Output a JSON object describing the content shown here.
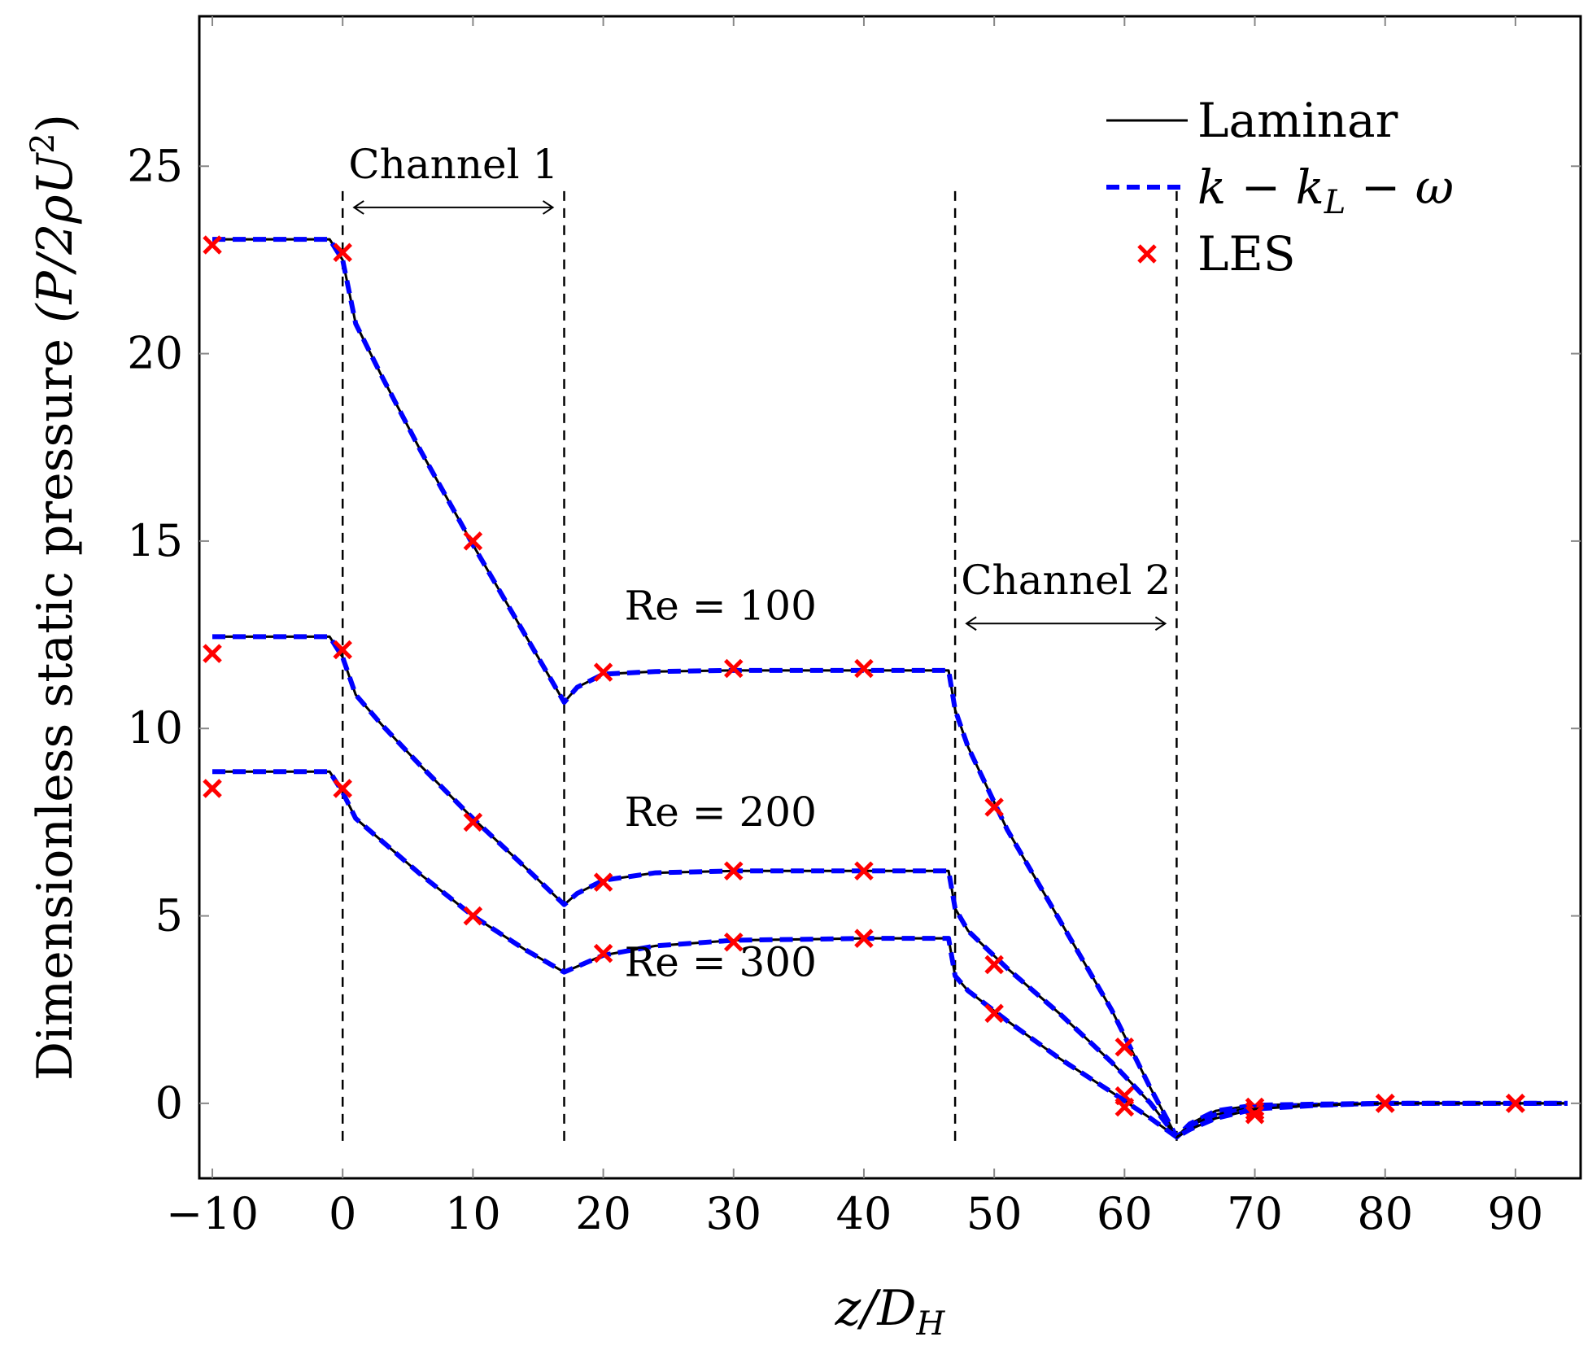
{
  "chart_data": {
    "type": "line",
    "title": "",
    "xlabel": "z/D_H",
    "xlabel_parts": {
      "main": "z/D",
      "sub": "H"
    },
    "ylabel": "Dimensionless static pressure (P/2ρU²)",
    "ylabel_parts": {
      "text": "Dimensionless static pressure",
      "formula": "(P/2ρU",
      "sup": "2",
      "close": ")"
    },
    "xlim": [
      -11,
      95
    ],
    "ylim": [
      -2,
      29
    ],
    "xticks": [
      -10,
      0,
      10,
      20,
      30,
      40,
      50,
      60,
      70,
      80,
      90
    ],
    "xtick_labels": [
      "−10",
      "0",
      "10",
      "20",
      "30",
      "40",
      "50",
      "60",
      "70",
      "80",
      "90"
    ],
    "yticks": [
      0,
      5,
      10,
      15,
      20,
      25
    ],
    "ytick_labels": [
      "0",
      "5",
      "10",
      "15",
      "20",
      "25"
    ],
    "grid": false,
    "legend_position": "top-right",
    "legend": [
      {
        "name": "Laminar",
        "style": "solid",
        "color": "#000000"
      },
      {
        "name": "k − k_L − ω",
        "parts": {
          "a": "k − k",
          "sub": "L",
          "b": " − ω"
        },
        "style": "dashed",
        "color": "#0000ff"
      },
      {
        "name": "LES",
        "style": "marker-x",
        "color": "#ff0000"
      }
    ],
    "series": [
      {
        "name": "Re = 100",
        "label": "Re = 100",
        "laminar": {
          "x": [
            -10,
            -1,
            0,
            1,
            3,
            6,
            10,
            14,
            17,
            18,
            20,
            24,
            30,
            40,
            46.5,
            47,
            48,
            51,
            55,
            59,
            62,
            64,
            65,
            67,
            70,
            75,
            80,
            94
          ],
          "y": [
            23.05,
            23.05,
            22.5,
            20.8,
            19.4,
            17.4,
            14.9,
            12.5,
            10.7,
            11.1,
            11.45,
            11.52,
            11.55,
            11.55,
            11.55,
            10.5,
            9.5,
            7.3,
            4.9,
            2.5,
            0.4,
            -0.9,
            -0.55,
            -0.2,
            -0.05,
            -0.02,
            0.0,
            0.0
          ]
        },
        "les": {
          "x": [
            -10,
            0,
            10,
            20,
            30,
            40,
            50,
            60,
            70,
            80,
            90
          ],
          "y": [
            22.9,
            22.7,
            15.0,
            11.5,
            11.6,
            11.6,
            7.9,
            1.5,
            -0.1,
            0.0,
            0.0
          ]
        }
      },
      {
        "name": "Re = 200",
        "label": "Re = 200",
        "laminar": {
          "x": [
            -10,
            -1,
            0,
            1,
            3,
            6,
            10,
            14,
            17,
            18,
            20,
            24,
            30,
            40,
            46.5,
            47,
            48,
            51,
            55,
            59,
            62,
            64,
            65,
            67,
            70,
            75,
            80,
            94
          ],
          "y": [
            12.45,
            12.45,
            11.9,
            10.9,
            10.1,
            9.0,
            7.6,
            6.3,
            5.3,
            5.6,
            5.95,
            6.15,
            6.2,
            6.2,
            6.2,
            5.2,
            4.6,
            3.6,
            2.4,
            1.1,
            0.0,
            -0.9,
            -0.6,
            -0.3,
            -0.1,
            -0.04,
            0.0,
            0.0
          ]
        },
        "les": {
          "x": [
            -10,
            0,
            10,
            20,
            30,
            40,
            50,
            60,
            70,
            80,
            90
          ],
          "y": [
            12.0,
            12.1,
            7.5,
            5.9,
            6.2,
            6.2,
            3.7,
            0.2,
            -0.2,
            0.0,
            0.0
          ]
        }
      },
      {
        "name": "Re = 300",
        "label": "Re = 300",
        "laminar": {
          "x": [
            -10,
            -1,
            0,
            1,
            3,
            6,
            10,
            14,
            17,
            18,
            20,
            24,
            30,
            40,
            46.5,
            47,
            48,
            51,
            55,
            59,
            62,
            64,
            65,
            67,
            70,
            75,
            80,
            94
          ],
          "y": [
            8.85,
            8.85,
            8.3,
            7.6,
            7.0,
            6.1,
            5.0,
            4.1,
            3.5,
            3.65,
            3.95,
            4.2,
            4.35,
            4.4,
            4.4,
            3.4,
            3.0,
            2.2,
            1.2,
            0.3,
            -0.4,
            -0.9,
            -0.7,
            -0.4,
            -0.15,
            -0.05,
            0.0,
            0.0
          ]
        },
        "les": {
          "x": [
            -10,
            0,
            10,
            20,
            30,
            40,
            50,
            60,
            70,
            80,
            90
          ],
          "y": [
            8.4,
            8.4,
            5.0,
            4.0,
            4.3,
            4.4,
            2.4,
            -0.1,
            -0.3,
            0.0,
            0.0
          ]
        }
      }
    ],
    "vertical_markers": [
      0,
      17,
      47,
      64
    ],
    "vertical_markers_ylim": [
      -1,
      24.5
    ],
    "annotations": [
      {
        "text": "Channel 1",
        "x_from": 0,
        "x_to": 17,
        "arrow_y": 23.9
      },
      {
        "text": "Channel 2",
        "x_from": 47,
        "x_to": 64,
        "arrow_y": 12.8
      }
    ],
    "re_labels": [
      {
        "text": "Re = 100",
        "x": 29,
        "y": 12.9
      },
      {
        "text": "Re = 200",
        "x": 29,
        "y": 7.4
      },
      {
        "text": "Re = 300",
        "x": 29,
        "y": 3.4
      }
    ]
  }
}
